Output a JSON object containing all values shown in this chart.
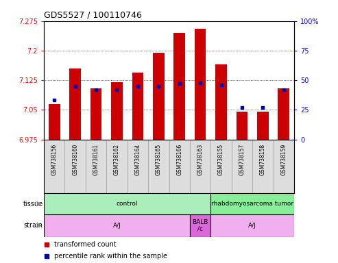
{
  "title": "GDS5527 / 100110746",
  "samples": [
    "GSM738156",
    "GSM738160",
    "GSM738161",
    "GSM738162",
    "GSM738164",
    "GSM738165",
    "GSM738166",
    "GSM738163",
    "GSM738155",
    "GSM738157",
    "GSM738158",
    "GSM738159"
  ],
  "transformed_count": [
    7.065,
    7.155,
    7.105,
    7.12,
    7.145,
    7.195,
    7.245,
    7.255,
    7.165,
    7.045,
    7.045,
    7.105
  ],
  "percentile_rank": [
    33,
    45,
    42,
    42,
    45,
    45,
    47,
    48,
    46,
    27,
    27,
    42
  ],
  "ymin": 6.975,
  "ymax": 7.275,
  "yticks": [
    6.975,
    7.05,
    7.125,
    7.2,
    7.275
  ],
  "ytick_labels": [
    "6.975",
    "7.05",
    "7.125",
    "7.2",
    "7.275"
  ],
  "yright_ticks": [
    0,
    25,
    50,
    75,
    100
  ],
  "yright_labels": [
    "0",
    "25",
    "50",
    "75",
    "100%"
  ],
  "bar_color": "#cc0000",
  "dot_color": "#0000bb",
  "tissue_groups": [
    {
      "label": "control",
      "start": 0,
      "end": 8,
      "color": "#aaeebb"
    },
    {
      "label": "rhabdomyosarcoma tumor",
      "start": 8,
      "end": 12,
      "color": "#88ee99"
    }
  ],
  "strain_groups": [
    {
      "label": "A/J",
      "start": 0,
      "end": 7,
      "color": "#f0b0f0"
    },
    {
      "label": "BALB\n/c",
      "start": 7,
      "end": 8,
      "color": "#dd66dd"
    },
    {
      "label": "A/J",
      "start": 8,
      "end": 12,
      "color": "#f0b0f0"
    }
  ],
  "legend_red_label": "transformed count",
  "legend_blue_label": "percentile rank within the sample",
  "bar_width": 0.55,
  "sample_label_fontsize": 5.5,
  "tick_label_fontsize": 7,
  "title_fontsize": 9,
  "sample_box_color": "#dddddd",
  "sample_box_edge": "#999999"
}
